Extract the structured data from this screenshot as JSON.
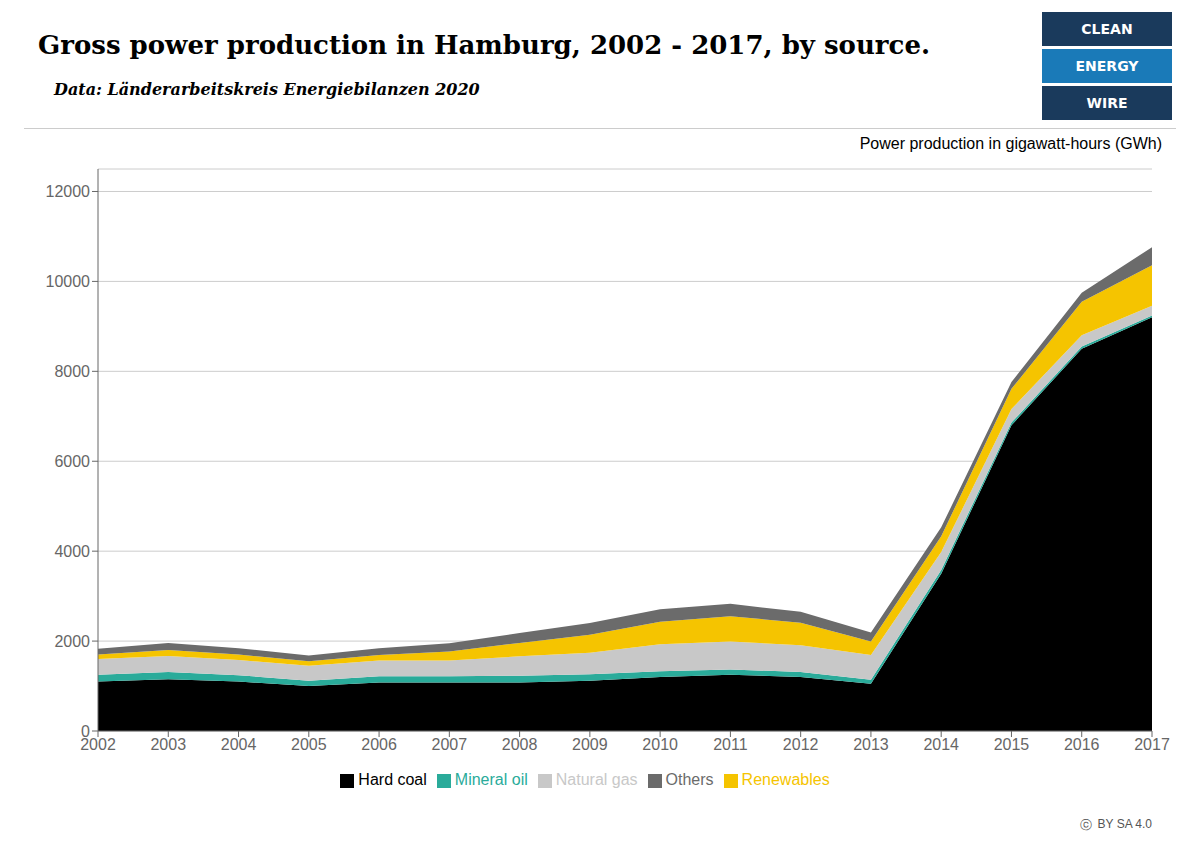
{
  "chart_data": {
    "type": "area",
    "stacked": true,
    "title": "Gross power production in Hamburg, 2002 - 2017, by source.",
    "subtitle": "Data: Länderarbeitskreis Energiebilanzen 2020",
    "ylabel": "Power production in gigawatt-hours (GWh)",
    "x": [
      2002,
      2003,
      2004,
      2005,
      2006,
      2007,
      2008,
      2009,
      2010,
      2011,
      2012,
      2013,
      2014,
      2015,
      2016,
      2017
    ],
    "xlim": [
      2002,
      2017
    ],
    "xticks": [
      2002,
      2003,
      2004,
      2005,
      2006,
      2007,
      2008,
      2009,
      2010,
      2011,
      2012,
      2013,
      2014,
      2015,
      2016,
      2017
    ],
    "ylim": [
      0,
      12500
    ],
    "yticks": [
      0,
      2000,
      4000,
      6000,
      8000,
      10000,
      12000
    ],
    "grid": true,
    "legend": "bottom",
    "series": [
      {
        "name": "Hard coal",
        "color": "#000000",
        "values": [
          1100,
          1150,
          1100,
          1000,
          1080,
          1080,
          1080,
          1120,
          1200,
          1250,
          1200,
          1050,
          3500,
          6800,
          8500,
          9200
        ]
      },
      {
        "name": "Mineral oil",
        "color": "#2aab9a",
        "values": [
          150,
          160,
          140,
          120,
          140,
          140,
          150,
          140,
          130,
          120,
          110,
          90,
          80,
          60,
          50,
          40
        ]
      },
      {
        "name": "Natural gas",
        "color": "#c8c8c8",
        "values": [
          350,
          360,
          340,
          330,
          350,
          350,
          430,
          480,
          600,
          620,
          600,
          550,
          400,
          300,
          250,
          220
        ]
      },
      {
        "name": "Renewables",
        "color": "#f5c400",
        "values": [
          100,
          130,
          120,
          100,
          120,
          200,
          300,
          400,
          500,
          560,
          500,
          300,
          350,
          450,
          750,
          900
        ]
      },
      {
        "name": "Others",
        "color": "#6b6b6b",
        "values": [
          130,
          160,
          140,
          130,
          150,
          180,
          220,
          260,
          280,
          280,
          240,
          200,
          200,
          150,
          200,
          400
        ]
      }
    ],
    "annotations": [
      {
        "text": "CLEAN",
        "color": "#1a3a5c"
      },
      {
        "text": "ENERGY",
        "color": "#1a7ab8"
      },
      {
        "text": "WIRE",
        "color": "#1a3a5c"
      },
      {
        "text": "ⓒ"
      },
      {
        "text": "BY SA 4.0"
      }
    ]
  }
}
